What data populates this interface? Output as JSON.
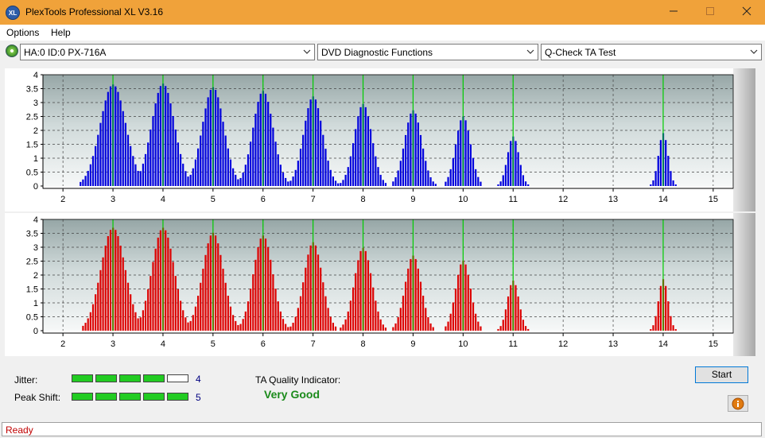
{
  "window": {
    "title": "PlexTools Professional XL V3.16",
    "icon_text": "XL",
    "minimize_icon": "minimize-icon",
    "maximize_icon": "maximize-icon",
    "close_icon": "close-icon"
  },
  "menu": {
    "items": [
      "Options",
      "Help"
    ]
  },
  "toolbar": {
    "drive": "HA:0 ID:0  PX-716A",
    "function": "DVD Diagnostic Functions",
    "test": "Q-Check TA Test"
  },
  "charts": {
    "x_ticks": [
      "2",
      "3",
      "4",
      "5",
      "6",
      "7",
      "8",
      "9",
      "10",
      "11",
      "12",
      "13",
      "14",
      "15"
    ],
    "y_ticks": [
      "4",
      "3.5",
      "3",
      "2.5",
      "2",
      "1.5",
      "1",
      "0.5",
      "0"
    ]
  },
  "chart_data": [
    {
      "type": "bar",
      "name": "top-chart",
      "x_range": [
        1.6,
        15.4
      ],
      "ylim": [
        0,
        4
      ],
      "bar_color": "#0000dd",
      "marker_color": "#00cc00",
      "markers": [
        3,
        4,
        5,
        6,
        7,
        8,
        9,
        10,
        11,
        14
      ],
      "peaks": [
        {
          "center": 3.0,
          "height": 3.65,
          "width": 0.38
        },
        {
          "center": 4.0,
          "height": 3.68,
          "width": 0.34
        },
        {
          "center": 5.0,
          "height": 3.55,
          "width": 0.32
        },
        {
          "center": 6.0,
          "height": 3.42,
          "width": 0.3
        },
        {
          "center": 7.0,
          "height": 3.22,
          "width": 0.28
        },
        {
          "center": 8.0,
          "height": 2.95,
          "width": 0.26
        },
        {
          "center": 9.0,
          "height": 2.72,
          "width": 0.25
        },
        {
          "center": 10.0,
          "height": 2.5,
          "width": 0.22
        },
        {
          "center": 11.0,
          "height": 1.78,
          "width": 0.17
        },
        {
          "center": 14.0,
          "height": 1.9,
          "width": 0.14
        }
      ]
    },
    {
      "type": "bar",
      "name": "bottom-chart",
      "x_range": [
        1.6,
        15.4
      ],
      "ylim": [
        0,
        4
      ],
      "bar_color": "#dd0000",
      "marker_color": "#00cc00",
      "markers": [
        3,
        4,
        5,
        6,
        7,
        8,
        9,
        10,
        11,
        14
      ],
      "peaks": [
        {
          "center": 3.0,
          "height": 3.7,
          "width": 0.36
        },
        {
          "center": 4.0,
          "height": 3.7,
          "width": 0.33
        },
        {
          "center": 5.0,
          "height": 3.52,
          "width": 0.31
        },
        {
          "center": 6.0,
          "height": 3.42,
          "width": 0.29
        },
        {
          "center": 7.0,
          "height": 3.18,
          "width": 0.27
        },
        {
          "center": 8.0,
          "height": 2.98,
          "width": 0.26
        },
        {
          "center": 9.0,
          "height": 2.7,
          "width": 0.24
        },
        {
          "center": 10.0,
          "height": 2.52,
          "width": 0.22
        },
        {
          "center": 11.0,
          "height": 1.8,
          "width": 0.17
        },
        {
          "center": 14.0,
          "height": 1.85,
          "width": 0.14
        }
      ]
    }
  ],
  "results": {
    "jitter_label": "Jitter:",
    "jitter_value": "4",
    "jitter_level": 4,
    "peak_shift_label": "Peak Shift:",
    "peak_shift_value": "5",
    "peak_shift_level": 5,
    "meter_max": 5,
    "meter_on_color": "#22cc22",
    "ta_label": "TA Quality Indicator:",
    "ta_value": "Very Good",
    "ta_color": "#1a8a1a",
    "start_label": "Start",
    "info_icon": "info-icon"
  },
  "status": {
    "text": "Ready"
  }
}
